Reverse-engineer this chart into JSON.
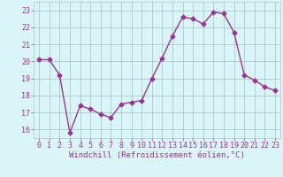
{
  "x": [
    0,
    1,
    2,
    3,
    4,
    5,
    6,
    7,
    8,
    9,
    10,
    11,
    12,
    13,
    14,
    15,
    16,
    17,
    18,
    19,
    20,
    21,
    22,
    23
  ],
  "y": [
    20.1,
    20.1,
    19.2,
    15.8,
    17.4,
    17.2,
    16.9,
    16.7,
    17.5,
    17.6,
    17.7,
    19.0,
    20.2,
    21.5,
    22.6,
    22.5,
    22.2,
    22.9,
    22.8,
    21.7,
    19.2,
    18.9,
    18.5,
    18.3
  ],
  "line_color": "#993399",
  "marker": "D",
  "marker_size": 2.5,
  "line_width": 1.0,
  "bg_color": "#d9f5f5",
  "grid_color": "#aacccc",
  "xlabel": "Windchill (Refroidissement éolien,°C)",
  "xlabel_color": "#993399",
  "xlabel_fontsize": 6.5,
  "tick_color": "#993399",
  "tick_fontsize": 6,
  "ytick_labels": [
    "16",
    "17",
    "18",
    "19",
    "20",
    "21",
    "22",
    "23"
  ],
  "ytick_values": [
    16,
    17,
    18,
    19,
    20,
    21,
    22,
    23
  ],
  "xtick_values": [
    0,
    1,
    2,
    3,
    4,
    5,
    6,
    7,
    8,
    9,
    10,
    11,
    12,
    13,
    14,
    15,
    16,
    17,
    18,
    19,
    20,
    21,
    22,
    23
  ],
  "xlim": [
    -0.5,
    23.5
  ],
  "ylim": [
    15.5,
    23.5
  ]
}
